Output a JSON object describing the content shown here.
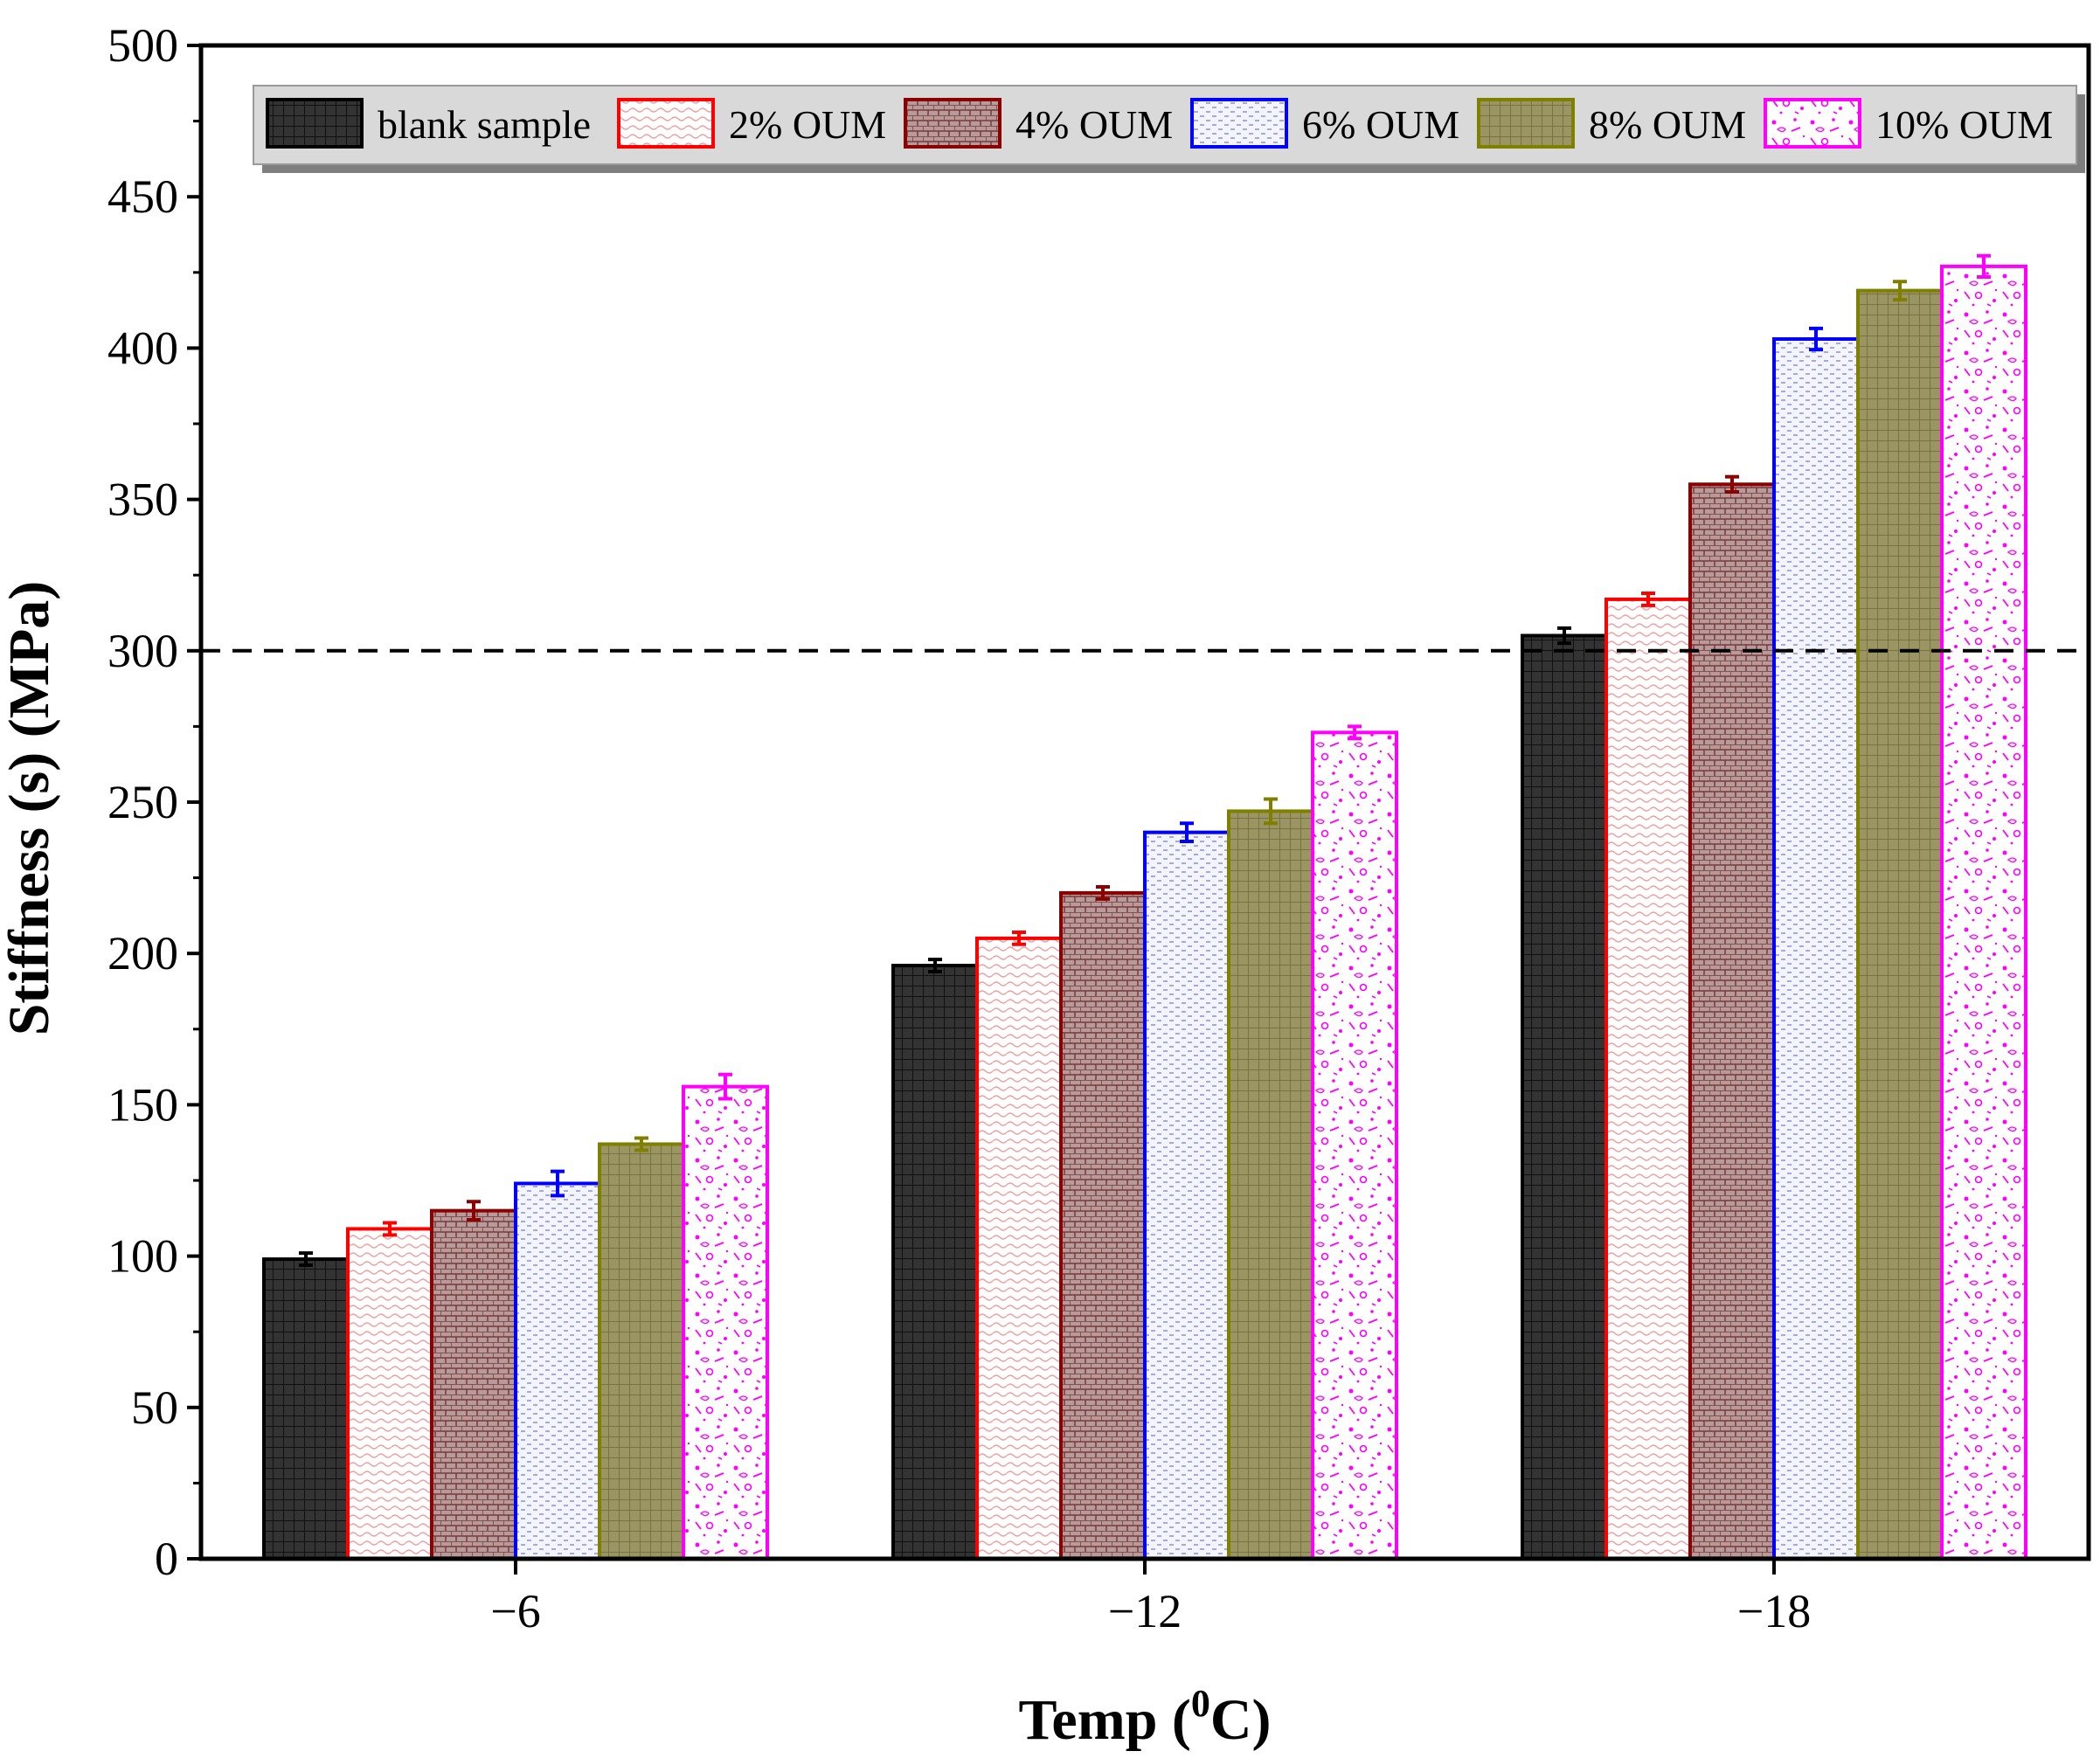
{
  "chart_data": {
    "type": "bar",
    "title": "",
    "xlabel": "Temp (",
    "xlabel_sup": "0",
    "xlabel_unit": "C)",
    "ylabel": "Stiffness (s) (MPa)",
    "ylim": [
      0,
      500
    ],
    "yticks": [
      0,
      50,
      100,
      150,
      200,
      250,
      300,
      350,
      400,
      450,
      500
    ],
    "ytick_labels": [
      "0",
      "50",
      "100",
      "150",
      "200",
      "250",
      "300",
      "350",
      "400",
      "450",
      "500"
    ],
    "categories": [
      "−6",
      "−12",
      "−18"
    ],
    "reference_line": {
      "value": 300,
      "style": "dashed"
    },
    "legend_position": "top",
    "series": [
      {
        "name": "blank sample",
        "fill": "#2a2a2a",
        "stroke": "#000000",
        "pattern": "grid-dark",
        "values": [
          99,
          196,
          305
        ],
        "errors": [
          2,
          2,
          2.5
        ]
      },
      {
        "name": "2% OUM",
        "fill": "#ffffff",
        "stroke": "#ff0000",
        "pattern": "wavy-red",
        "values": [
          109,
          205,
          317
        ],
        "errors": [
          2,
          2,
          2
        ]
      },
      {
        "name": "4% OUM",
        "fill": "#a98b8b",
        "stroke": "#8b0000",
        "pattern": "brick-maroon",
        "values": [
          115,
          220,
          355
        ],
        "errors": [
          3,
          2,
          2.5
        ]
      },
      {
        "name": "6% OUM",
        "fill": "#eef0fa",
        "stroke": "#0000ff",
        "pattern": "dash-blue",
        "values": [
          124,
          240,
          403
        ],
        "errors": [
          4,
          3,
          3.5
        ]
      },
      {
        "name": "8% OUM",
        "fill": "#8f8a55",
        "stroke": "#808000",
        "pattern": "grid-olive",
        "values": [
          137,
          247,
          419
        ],
        "errors": [
          2,
          4,
          3
        ]
      },
      {
        "name": "10% OUM",
        "fill": "#ffffff",
        "stroke": "#ff00ff",
        "pattern": "confetti-magenta",
        "values": [
          156,
          273,
          427
        ],
        "errors": [
          4,
          2,
          3.5
        ]
      }
    ]
  }
}
